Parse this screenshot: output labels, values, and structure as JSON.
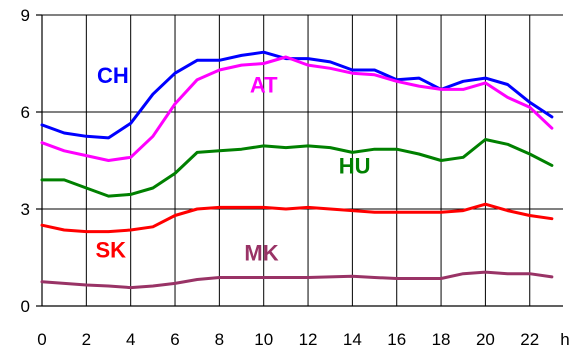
{
  "chart_data": {
    "type": "line",
    "title": "",
    "xlabel": "",
    "ylabel": "",
    "x_unit_label": "h",
    "xlim": [
      0,
      23.5
    ],
    "ylim": [
      0,
      9
    ],
    "y_ticks": [
      0,
      3,
      6,
      9
    ],
    "x_ticks": [
      0,
      2,
      4,
      6,
      8,
      10,
      12,
      14,
      16,
      18,
      20,
      22
    ],
    "grid": true,
    "legend": "none (inline series labels)",
    "x": [
      0,
      1,
      2,
      3,
      4,
      5,
      6,
      7,
      8,
      9,
      10,
      11,
      12,
      13,
      14,
      15,
      16,
      17,
      18,
      19,
      20,
      21,
      22,
      23
    ],
    "series": [
      {
        "name": "CH",
        "color": "#0000ff",
        "values": [
          5.6,
          5.35,
          5.25,
          5.2,
          5.65,
          6.55,
          7.2,
          7.6,
          7.6,
          7.75,
          7.85,
          7.65,
          7.65,
          7.55,
          7.3,
          7.3,
          7.0,
          7.05,
          6.7,
          6.95,
          7.05,
          6.85,
          6.3,
          5.85
        ]
      },
      {
        "name": "AT",
        "color": "#ff00ff",
        "values": [
          5.05,
          4.8,
          4.65,
          4.5,
          4.6,
          5.25,
          6.25,
          7.0,
          7.3,
          7.45,
          7.5,
          7.7,
          7.45,
          7.35,
          7.2,
          7.15,
          6.95,
          6.8,
          6.7,
          6.7,
          6.9,
          6.45,
          6.15,
          5.5
        ]
      },
      {
        "name": "HU",
        "color": "#008000",
        "values": [
          3.9,
          3.9,
          3.65,
          3.4,
          3.45,
          3.65,
          4.1,
          4.75,
          4.8,
          4.85,
          4.95,
          4.9,
          4.95,
          4.9,
          4.75,
          4.85,
          4.85,
          4.7,
          4.5,
          4.6,
          5.15,
          5.0,
          4.7,
          4.35
        ]
      },
      {
        "name": "SK",
        "color": "#ff0000",
        "values": [
          2.5,
          2.35,
          2.3,
          2.3,
          2.35,
          2.45,
          2.8,
          3.0,
          3.05,
          3.05,
          3.05,
          3.0,
          3.05,
          3.0,
          2.95,
          2.9,
          2.9,
          2.9,
          2.9,
          2.95,
          3.15,
          2.95,
          2.8,
          2.7
        ]
      },
      {
        "name": "MK",
        "color": "#993366",
        "values": [
          0.75,
          0.7,
          0.65,
          0.62,
          0.57,
          0.62,
          0.7,
          0.82,
          0.88,
          0.88,
          0.88,
          0.88,
          0.88,
          0.9,
          0.92,
          0.88,
          0.85,
          0.85,
          0.85,
          1.0,
          1.05,
          1.0,
          1.0,
          0.9
        ]
      }
    ]
  }
}
